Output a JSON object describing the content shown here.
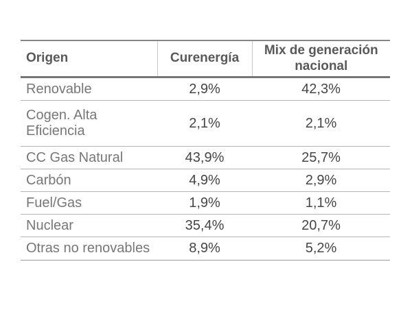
{
  "chart_data": {
    "type": "table",
    "columns": [
      "Origen",
      "Curenergía",
      "Mix de generación nacional"
    ],
    "rows": [
      [
        "Renovable",
        "2,9%",
        "42,3%"
      ],
      [
        "Cogen. Alta Eficiencia",
        "2,1%",
        "2,1%"
      ],
      [
        "CC Gas Natural",
        "43,9%",
        "25,7%"
      ],
      [
        "Carbón",
        "4,9%",
        "2,9%"
      ],
      [
        "Fuel/Gas",
        "1,9%",
        "1,1%"
      ],
      [
        "Nuclear",
        "35,4%",
        "20,7%"
      ],
      [
        "Otras no renovables",
        "8,9%",
        "5,2%"
      ]
    ],
    "series": [
      {
        "name": "Curenergía",
        "values": [
          2.9,
          2.1,
          43.9,
          4.9,
          1.9,
          35.4,
          8.9
        ]
      },
      {
        "name": "Mix de generación nacional",
        "values": [
          42.3,
          2.1,
          25.7,
          2.9,
          1.1,
          20.7,
          5.2
        ]
      }
    ],
    "value_unit": "%",
    "title": ""
  },
  "colors": {
    "header_text": "#595959",
    "label_text": "#777777",
    "value_text": "#454545",
    "border_top": "#868686",
    "border_header": "#767676",
    "row_divider": "#b4b4b4",
    "border_bottom": "#979797",
    "header_divider": "#c8c8c8",
    "bg": "#ffffff"
  }
}
